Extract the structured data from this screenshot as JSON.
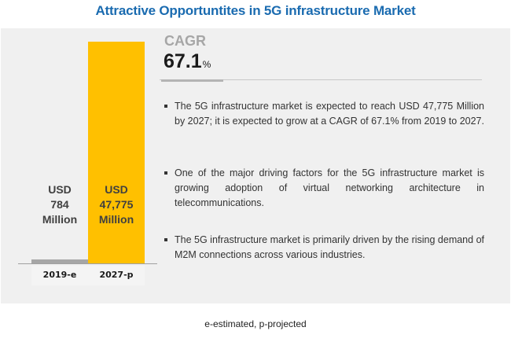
{
  "title": "Attractive Opportuntites in 5G infrastructure Market",
  "chart_data": {
    "type": "bar",
    "title": "Attractive Opportuntites in 5G infrastructure Market",
    "categories": [
      "2019-e",
      "2027-p"
    ],
    "values": [
      784,
      47775
    ],
    "units": "USD Million",
    "data_labels": [
      [
        "USD",
        "784",
        "Million"
      ],
      [
        "USD",
        "47,775",
        "Million"
      ]
    ],
    "colors": [
      "#a6a6a6",
      "#ffc000"
    ],
    "xlabel": "",
    "ylabel": "",
    "ylim": [
      0,
      47775
    ],
    "grid": false,
    "legend": "none"
  },
  "cagr": {
    "label": "CAGR",
    "value": "67.1",
    "unit": "%"
  },
  "bullets": [
    "The 5G infrastructure market is expected to reach USD 47,775 Million by 2027; it is expected to grow at a CAGR of 67.1% from 2019 to 2027.",
    "One of the major driving factors for the 5G infrastructure market is growing adoption of virtual networking architecture in telecommunications.",
    "The 5G infrastructure market is primarily driven by the rising demand of M2M connections across various industries."
  ],
  "footnote": "e-estimated, p-projected"
}
